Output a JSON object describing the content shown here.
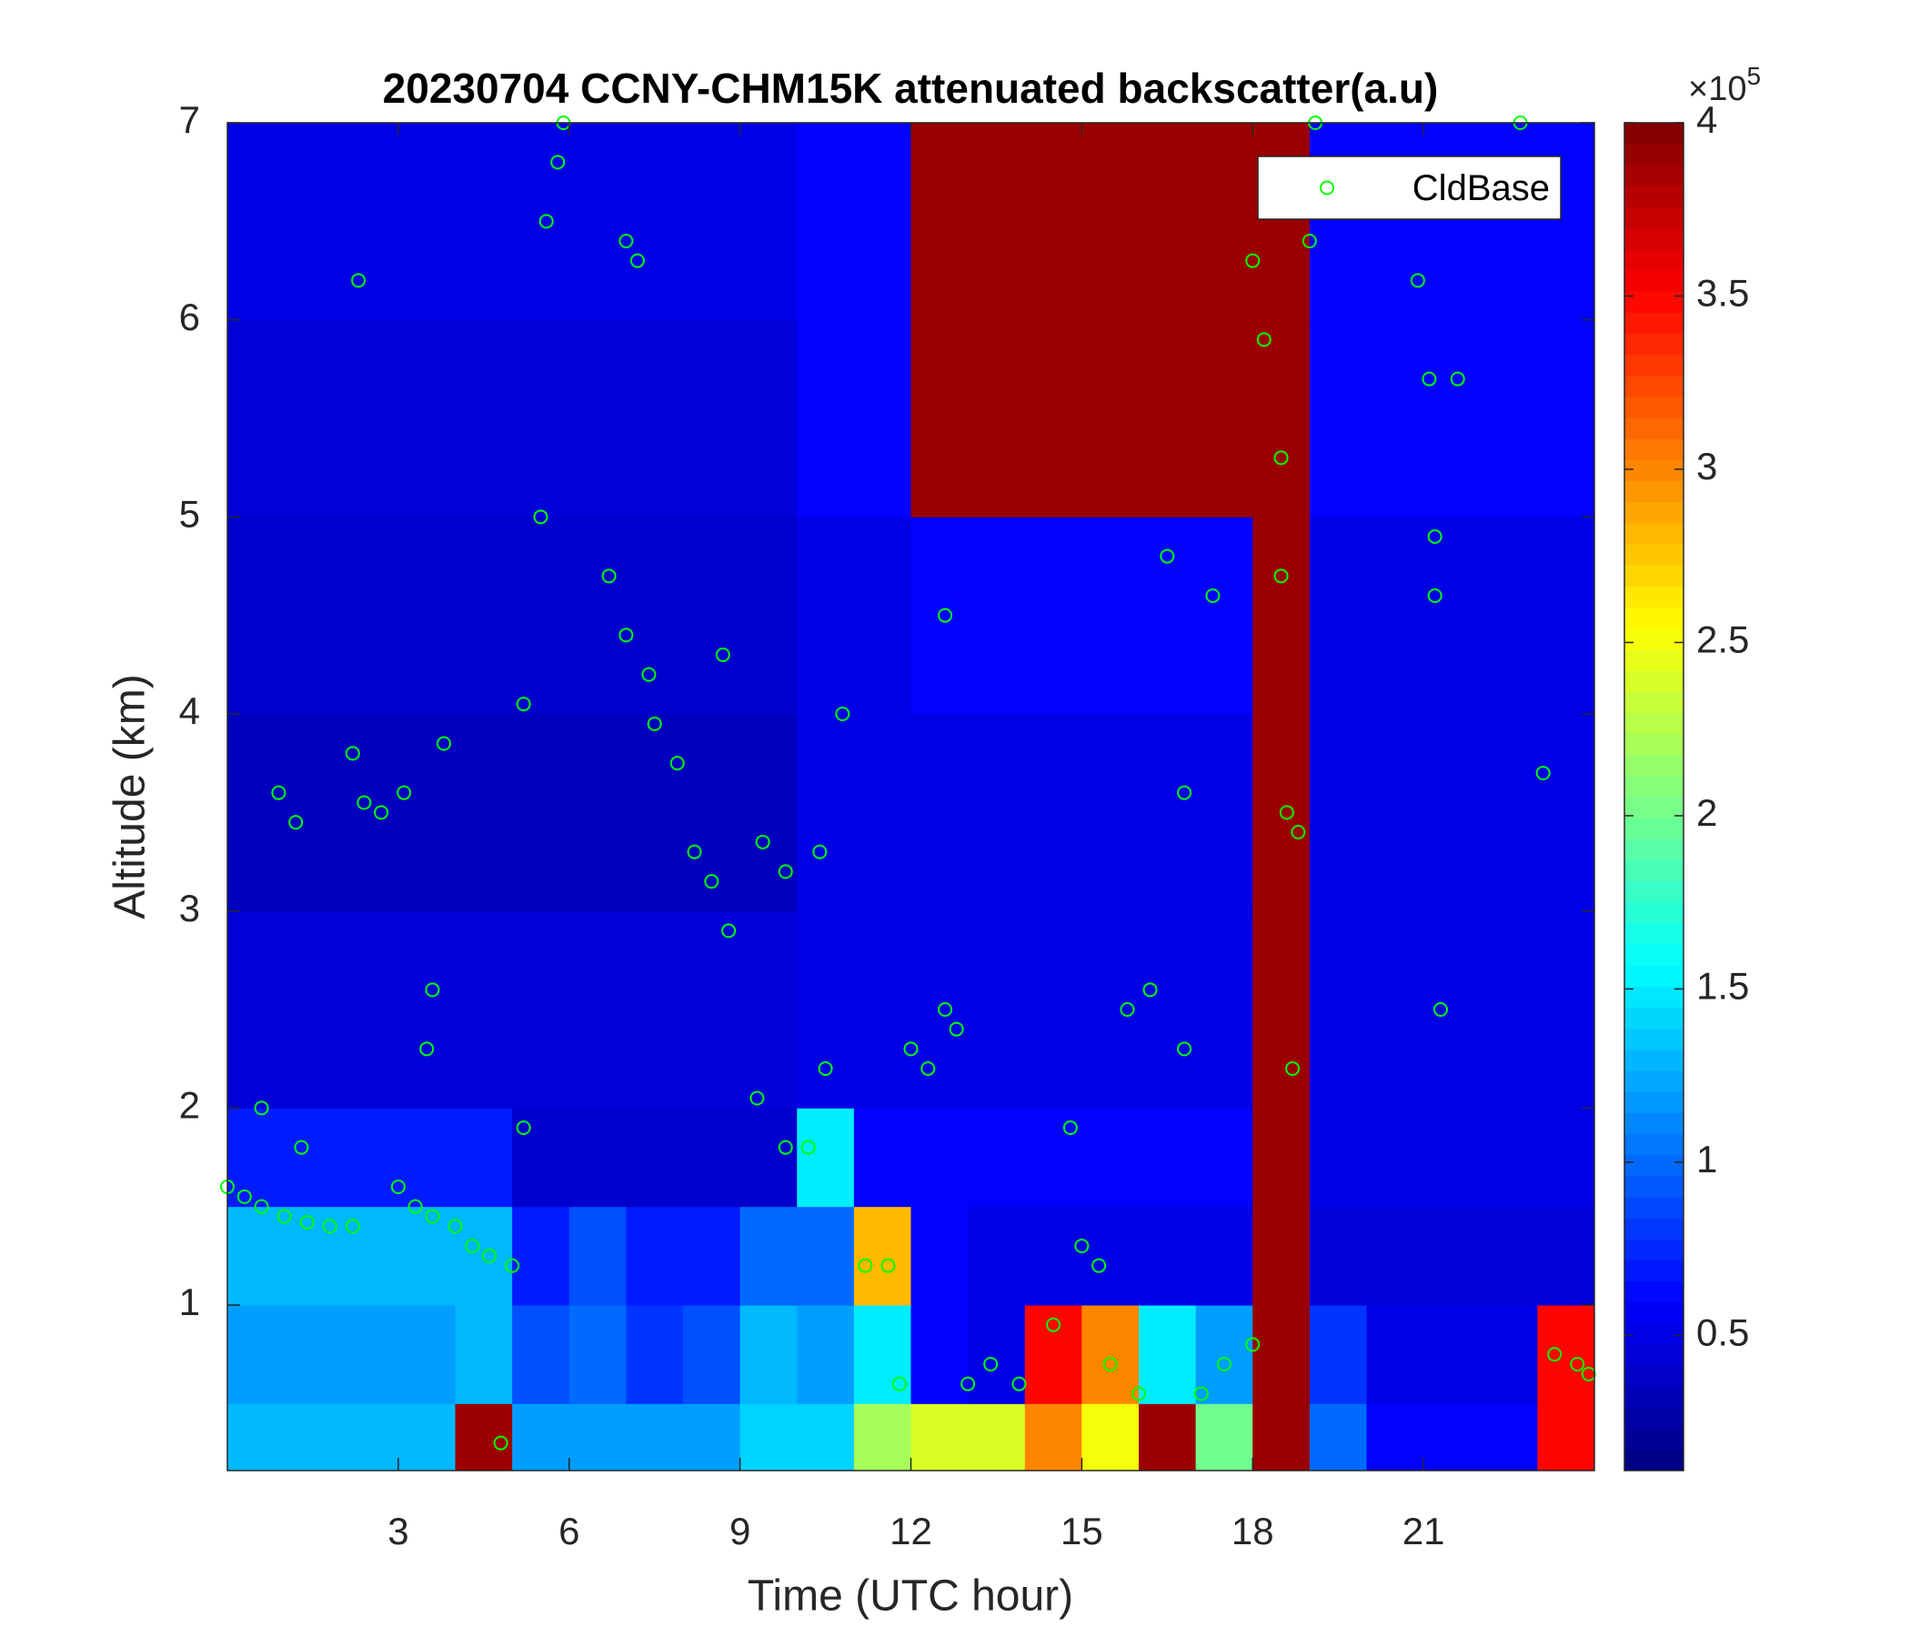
{
  "chart_data": {
    "type": "heatmap",
    "title": "20230704 CCNY-CHM15K attenuated backscatter(a.u)",
    "xlabel": "Time (UTC hour)",
    "ylabel": "Altitude (km)",
    "xlim": [
      0,
      24
    ],
    "ylim": [
      0.16,
      7
    ],
    "xticks": [
      3,
      6,
      9,
      12,
      15,
      18,
      21
    ],
    "yticks": [
      1,
      2,
      3,
      4,
      5,
      6,
      7
    ],
    "colormap": "jet",
    "clim": [
      0.11,
      4
    ],
    "cticks": [
      0.5,
      1,
      1.5,
      2,
      2.5,
      3,
      3.5,
      4
    ],
    "colorbar_multiplier": {
      "base": "×10",
      "exponent": 5
    },
    "x_edges": [
      0,
      1,
      2,
      3,
      4,
      5,
      6,
      7,
      8,
      9,
      10,
      11,
      12,
      13,
      14,
      15,
      16,
      17,
      18,
      19,
      20,
      21,
      22,
      23,
      24
    ],
    "y_edges": [
      0.16,
      0.5,
      1,
      1.5,
      2,
      3,
      4,
      5,
      6,
      7
    ],
    "z": [
      [
        1.3,
        1.3,
        1.3,
        1.3,
        3.9,
        1.2,
        1.2,
        1.2,
        1.2,
        1.4,
        1.4,
        2.2,
        2.4,
        2.4,
        3,
        2.5,
        3.9,
        2,
        3.9,
        1,
        0.6,
        0.6,
        0.6,
        3.5
      ],
      [
        1.2,
        1.2,
        1.2,
        1.2,
        1.3,
        0.9,
        1,
        0.8,
        0.9,
        1.3,
        1.2,
        1.5,
        0.6,
        0.5,
        3.5,
        3,
        1.5,
        1.2,
        3.9,
        0.8,
        0.5,
        0.5,
        0.5,
        3.5
      ],
      [
        1.3,
        1.3,
        1.3,
        1.3,
        1.3,
        0.7,
        0.9,
        0.7,
        0.7,
        1,
        1,
        2.8,
        0.6,
        0.5,
        0.5,
        0.5,
        0.5,
        0.5,
        3.9,
        0.45,
        0.45,
        0.45,
        0.45,
        0.45
      ],
      [
        0.7,
        0.7,
        0.7,
        0.7,
        0.7,
        0.4,
        0.4,
        0.4,
        0.4,
        0.4,
        1.5,
        0.6,
        0.6,
        0.6,
        0.6,
        0.6,
        0.6,
        0.6,
        3.9,
        0.5,
        0.5,
        0.5,
        0.5,
        0.5
      ],
      [
        0.45,
        0.45,
        0.45,
        0.45,
        0.45,
        0.45,
        0.45,
        0.45,
        0.45,
        0.45,
        0.5,
        0.5,
        0.5,
        0.5,
        0.5,
        0.5,
        0.5,
        0.5,
        3.9,
        0.5,
        0.5,
        0.5,
        0.5,
        0.5
      ],
      [
        0.35,
        0.35,
        0.35,
        0.35,
        0.35,
        0.35,
        0.35,
        0.35,
        0.35,
        0.35,
        0.5,
        0.5,
        0.5,
        0.5,
        0.5,
        0.5,
        0.5,
        0.5,
        3.9,
        0.5,
        0.5,
        0.5,
        0.5,
        0.5
      ],
      [
        0.4,
        0.4,
        0.4,
        0.4,
        0.4,
        0.4,
        0.4,
        0.4,
        0.4,
        0.4,
        0.5,
        0.5,
        0.6,
        0.6,
        0.6,
        0.6,
        0.6,
        0.6,
        3.9,
        0.5,
        0.5,
        0.5,
        0.5,
        0.5
      ],
      [
        0.45,
        0.45,
        0.45,
        0.45,
        0.45,
        0.45,
        0.45,
        0.45,
        0.45,
        0.45,
        0.6,
        0.6,
        3.9,
        3.9,
        3.9,
        3.9,
        3.9,
        3.9,
        3.9,
        0.6,
        0.6,
        0.6,
        0.6,
        0.6
      ],
      [
        0.5,
        0.5,
        0.5,
        0.5,
        0.5,
        0.5,
        0.5,
        0.5,
        0.5,
        0.5,
        0.6,
        0.6,
        3.9,
        3.9,
        3.9,
        3.9,
        3.9,
        3.9,
        3.9,
        0.6,
        0.6,
        0.6,
        0.6,
        0.6
      ]
    ],
    "legend": "upper right",
    "series": [
      {
        "name": "CldBase",
        "type": "scatter",
        "color": "#00ff00",
        "x": [
          0,
          0.3,
          0.6,
          1,
          1.4,
          1.8,
          2.2,
          0.6,
          1.3,
          0.9,
          1.2,
          2.4,
          2.7,
          3.1,
          2.2,
          2.3,
          3,
          3.3,
          3.6,
          4,
          4.3,
          4.6,
          3.6,
          3.5,
          3.8,
          5.2,
          5,
          4.8,
          5.2,
          5.5,
          5.6,
          5.8,
          5.9,
          6.7,
          7,
          7.2,
          7,
          7.4,
          7.5,
          7.9,
          8.2,
          8.5,
          8.8,
          8.7,
          9.4,
          9.3,
          9.8,
          9.8,
          10.2,
          10.4,
          10.5,
          10.8,
          11.2,
          11.6,
          11.8,
          12,
          12.3,
          12.6,
          12.8,
          12.6,
          13,
          13.4,
          13.9,
          14.5,
          14.8,
          15,
          15.3,
          15.5,
          15.8,
          16,
          16.2,
          16.5,
          16.8,
          17.1,
          17.3,
          16.8,
          17.5,
          18,
          18,
          18.2,
          18.5,
          18.5,
          18.6,
          18.8,
          18.7,
          19,
          19.1,
          20.9,
          21.1,
          21.2,
          21.2,
          21.3,
          21.6,
          22.7,
          23.1,
          23.3,
          23.7,
          23.9
        ],
        "y": [
          1.6,
          1.55,
          1.5,
          1.45,
          1.42,
          1.4,
          1.4,
          2,
          1.8,
          3.6,
          3.45,
          3.55,
          3.5,
          3.6,
          3.8,
          6.2,
          1.6,
          1.5,
          1.45,
          1.4,
          1.3,
          1.25,
          2.6,
          2.3,
          3.85,
          4.05,
          1.2,
          0.3,
          1.9,
          5,
          6.5,
          6.8,
          7,
          4.7,
          6.4,
          6.3,
          4.4,
          4.2,
          3.95,
          3.75,
          3.3,
          3.15,
          2.9,
          4.3,
          3.35,
          2.05,
          1.8,
          3.2,
          1.8,
          3.3,
          2.2,
          4,
          1.2,
          1.2,
          0.6,
          2.3,
          2.2,
          2.5,
          2.4,
          4.5,
          0.6,
          0.7,
          0.6,
          0.9,
          1.9,
          1.3,
          1.2,
          0.7,
          2.5,
          0.55,
          2.6,
          4.8,
          2.3,
          0.55,
          4.6,
          3.6,
          0.7,
          6.3,
          0.8,
          5.9,
          5.3,
          4.7,
          3.5,
          3.4,
          2.2,
          6.4,
          7,
          6.2,
          5.7,
          4.9,
          4.6,
          2.5,
          5.7,
          7,
          3.7,
          0.75,
          0.7,
          0.65
        ]
      }
    ]
  }
}
